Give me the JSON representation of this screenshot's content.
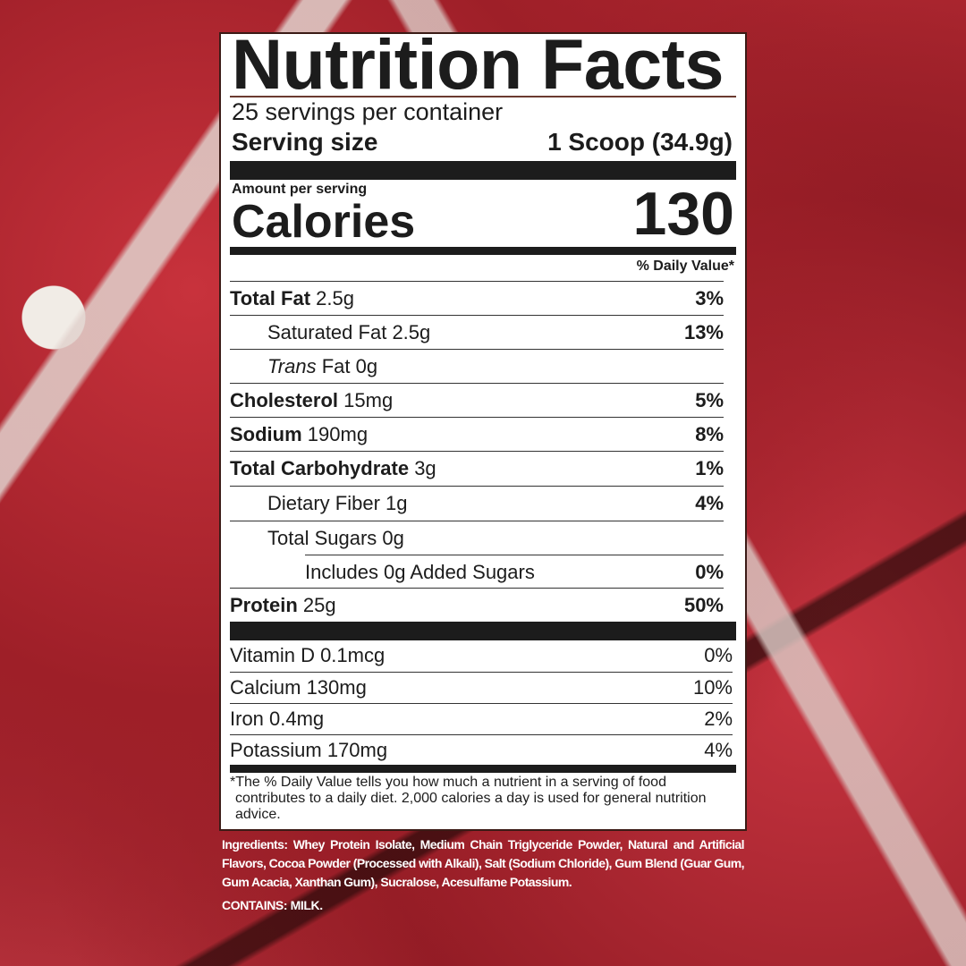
{
  "label": {
    "title": "Nutrition Facts",
    "servings_per_container": "25 servings per container",
    "serving_size_label": "Serving size",
    "serving_size_value": "1 Scoop (34.9g)",
    "amount_per_serving": "Amount per serving",
    "calories_label": "Calories",
    "calories_value": "130",
    "daily_value_header": "% Daily Value*",
    "nutrients": [
      {
        "name": "Total Fat",
        "amount": "2.5g",
        "dv": "3%"
      },
      {
        "name": "Saturated Fat",
        "amount": "2.5g",
        "dv": "13%"
      },
      {
        "name": "Trans",
        "name2": "Fat",
        "amount": "0g",
        "dv": ""
      },
      {
        "name": "Cholesterol",
        "amount": "15mg",
        "dv": "5%"
      },
      {
        "name": "Sodium",
        "amount": "190mg",
        "dv": "8%"
      },
      {
        "name": "Total Carbohydrate",
        "amount": "3g",
        "dv": "1%"
      },
      {
        "name": "Dietary Fiber",
        "amount": "1g",
        "dv": "4%"
      },
      {
        "name": "Total Sugars",
        "amount": "0g",
        "dv": ""
      },
      {
        "name": "Includes 0g Added Sugars",
        "amount": "",
        "dv": "0%"
      },
      {
        "name": "Protein",
        "amount": "25g",
        "dv": "50%"
      }
    ],
    "vitamins": [
      {
        "name": "Vitamin D 0.1mcg",
        "dv": "0%"
      },
      {
        "name": "Calcium 130mg",
        "dv": "10%"
      },
      {
        "name": "Iron 0.4mg",
        "dv": "2%"
      },
      {
        "name": "Potassium 170mg",
        "dv": "4%"
      }
    ],
    "footnote": "*The % Daily Value tells you how much a nutrient in a serving of food contributes to a daily diet. 2,000 calories a day is used for general nutrition advice."
  },
  "ingredients": "Ingredients: Whey Protein Isolate, Medium Chain Triglyceride Powder, Natural and Artificial Flavors, Cocoa Powder (Processed with Alkali), Salt (Sodium Chloride), Gum Blend (Guar Gum, Gum Acacia, Xanthan Gum), Sucralose, Acesulfame Potassium.",
  "contains": "CONTAINS: MILK.",
  "colors": {
    "background": "#a8242d",
    "panel_border": "#3b1b16",
    "text": "#1c1c1c"
  }
}
